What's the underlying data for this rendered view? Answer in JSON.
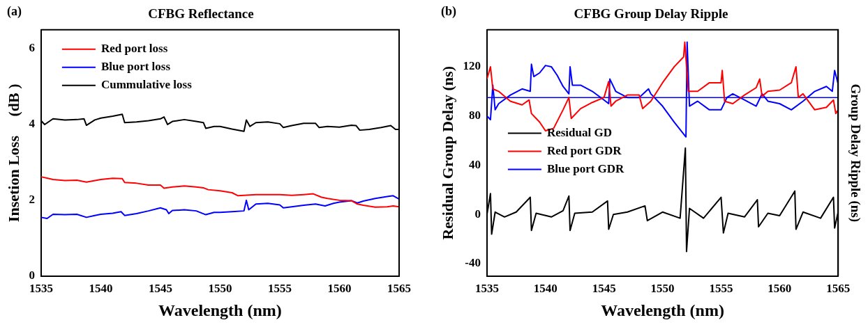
{
  "chart_data": [
    {
      "type": "line",
      "title": "CFBG Reflectance",
      "xlabel": "Wavelength (nm)",
      "ylabel": "Insetion Loss     (dB )",
      "annotations": [
        "(a)"
      ],
      "legend": "top left",
      "grid": false,
      "marker": "none",
      "line_style": "solid",
      "xlim": [
        1535,
        1565
      ],
      "xticks": [
        1535,
        1540,
        1545,
        1550,
        1555,
        1560,
        1565
      ],
      "ylim": [
        0,
        6.5
      ],
      "yticks": [
        0,
        2,
        4,
        6
      ],
      "series": [
        {
          "name": "Red port loss",
          "color": "#ff0000",
          "x": [
            1535,
            1536,
            1537,
            1538,
            1538.8,
            1540,
            1541,
            1541.8,
            1542,
            1543,
            1544,
            1545,
            1545.3,
            1546,
            1547,
            1548,
            1548.6,
            1549,
            1550,
            1551,
            1551.5,
            1552,
            1553,
            1554,
            1555,
            1556,
            1557,
            1557.8,
            1558.5,
            1559,
            1560,
            1561,
            1561.5,
            1562,
            1563,
            1564,
            1564.5,
            1565
          ],
          "values": [
            2.62,
            2.55,
            2.52,
            2.53,
            2.48,
            2.55,
            2.58,
            2.57,
            2.47,
            2.45,
            2.4,
            2.4,
            2.32,
            2.35,
            2.38,
            2.35,
            2.33,
            2.28,
            2.25,
            2.2,
            2.12,
            2.13,
            2.15,
            2.15,
            2.15,
            2.13,
            2.15,
            2.17,
            2.08,
            2.05,
            2.0,
            1.99,
            1.9,
            1.87,
            1.82,
            1.83,
            1.85,
            1.83
          ]
        },
        {
          "name": "Blue port loss",
          "color": "#0000ff",
          "x": [
            1535,
            1535.5,
            1536,
            1537,
            1538,
            1538.8,
            1539.5,
            1540,
            1541,
            1541.7,
            1542,
            1543,
            1544,
            1545,
            1545.5,
            1545.7,
            1546,
            1547,
            1548,
            1548.8,
            1549.5,
            1550,
            1551,
            1552,
            1552.2,
            1552.4,
            1553,
            1554,
            1555,
            1555.3,
            1556,
            1557,
            1558,
            1558.8,
            1559.5,
            1560,
            1561,
            1561.5,
            1562,
            1563,
            1564,
            1564.5,
            1565
          ],
          "values": [
            1.55,
            1.52,
            1.63,
            1.62,
            1.63,
            1.55,
            1.6,
            1.63,
            1.66,
            1.7,
            1.6,
            1.65,
            1.72,
            1.8,
            1.75,
            1.65,
            1.73,
            1.75,
            1.72,
            1.62,
            1.68,
            1.68,
            1.7,
            1.72,
            2.0,
            1.75,
            1.9,
            1.92,
            1.88,
            1.8,
            1.83,
            1.87,
            1.9,
            1.85,
            1.92,
            1.95,
            1.99,
            1.93,
            1.98,
            2.05,
            2.1,
            2.12,
            2.03
          ]
        },
        {
          "name": "Cummulative loss",
          "color": "#000000",
          "x": [
            1535,
            1535.3,
            1536,
            1537,
            1538,
            1538.6,
            1538.8,
            1539.5,
            1540,
            1541,
            1541.8,
            1542,
            1543,
            1544,
            1545,
            1545.3,
            1545.6,
            1546,
            1547,
            1548,
            1548.6,
            1548.8,
            1549.5,
            1550,
            1551,
            1552,
            1552.2,
            1552.5,
            1553,
            1554,
            1555,
            1555.3,
            1556,
            1557,
            1558,
            1558.3,
            1559,
            1560,
            1561,
            1561.4,
            1561.7,
            1562.5,
            1563.5,
            1564.3,
            1564.7,
            1565
          ],
          "values": [
            4.1,
            4.0,
            4.15,
            4.12,
            4.13,
            4.15,
            3.98,
            4.12,
            4.17,
            4.22,
            4.27,
            4.05,
            4.07,
            4.1,
            4.15,
            4.2,
            4.0,
            4.08,
            4.13,
            4.08,
            4.05,
            3.9,
            3.95,
            3.95,
            3.88,
            3.82,
            4.12,
            3.95,
            4.05,
            4.07,
            4.02,
            3.92,
            3.97,
            4.03,
            4.03,
            3.92,
            3.95,
            3.93,
            3.98,
            3.97,
            3.85,
            3.87,
            3.92,
            3.97,
            3.87,
            3.87
          ]
        }
      ]
    },
    {
      "type": "line",
      "title": "CFBG Group Delay Ripple",
      "xlabel": "Wavelength (nm)",
      "ylabel": "Residual Group Delay (ns)",
      "y2label": "Group Delay Ripple (ns)",
      "annotations": [
        "(b)"
      ],
      "legend": "left",
      "grid": false,
      "marker": "none",
      "line_style": "solid",
      "xlim": [
        1535,
        1565
      ],
      "xticks": [
        1535,
        1540,
        1545,
        1550,
        1555,
        1560,
        1565
      ],
      "ylim": [
        -50,
        150
      ],
      "yticks": [
        -40,
        0,
        40,
        80,
        120
      ],
      "ref_lines": [
        {
          "axis": "y",
          "value": 95,
          "color": "#0000ff"
        }
      ],
      "series": [
        {
          "name": "Residual GD",
          "color": "#000000",
          "x": [
            1535,
            1535.3,
            1535.4,
            1535.7,
            1536.5,
            1537.5,
            1538.7,
            1538.8,
            1539.2,
            1540.5,
            1541.5,
            1542,
            1542.1,
            1542.5,
            1544,
            1545.3,
            1545.4,
            1545.8,
            1547,
            1548.5,
            1548.7,
            1550,
            1551.5,
            1551.95,
            1552.05,
            1552.3,
            1553.5,
            1555,
            1555.2,
            1555.6,
            1557,
            1558.1,
            1558.2,
            1559,
            1560,
            1561.3,
            1561.4,
            1562,
            1563.5,
            1564.6,
            1564.7,
            1565
          ],
          "values": [
            0,
            17,
            -16,
            2,
            -2,
            2,
            14,
            -13,
            1,
            -2,
            3,
            15,
            -13,
            1,
            2,
            11,
            -12,
            0,
            2,
            7,
            -5,
            2,
            -3,
            54,
            -30,
            5,
            -3,
            14,
            -15,
            1,
            -2,
            12,
            -10,
            1,
            -1,
            19,
            -12,
            2,
            -3,
            14,
            -11,
            2
          ]
        },
        {
          "name": "Red port GDR",
          "color": "#ff0000",
          "x": [
            1535,
            1535.3,
            1535.5,
            1536,
            1537,
            1538,
            1538.6,
            1538.8,
            1539.5,
            1540,
            1540.7,
            1541.5,
            1542,
            1542.2,
            1543,
            1544,
            1545,
            1545.4,
            1545.6,
            1546,
            1547,
            1548,
            1548.3,
            1549,
            1550,
            1551,
            1551.8,
            1551.9,
            1552.2,
            1553,
            1554,
            1555,
            1555.1,
            1555.3,
            1556,
            1557,
            1558,
            1558.3,
            1558.5,
            1559,
            1560,
            1561,
            1561.4,
            1561.6,
            1562,
            1563,
            1564,
            1564.6,
            1564.8,
            1565
          ],
          "values": [
            110,
            120,
            102,
            100,
            92,
            89,
            93,
            82,
            75,
            68,
            70,
            85,
            95,
            78,
            86,
            91,
            95,
            108,
            88,
            92,
            97,
            97,
            86,
            92,
            107,
            120,
            128,
            140,
            100,
            100,
            107,
            107,
            117,
            92,
            90,
            97,
            103,
            110,
            96,
            100,
            101,
            107,
            120,
            95,
            98,
            85,
            87,
            93,
            82,
            85
          ]
        },
        {
          "name": "Blue port GDR",
          "color": "#0000ff",
          "x": [
            1535,
            1535.3,
            1535.5,
            1535.7,
            1536,
            1537,
            1538,
            1538.7,
            1538.8,
            1539,
            1539.5,
            1540,
            1540.5,
            1541,
            1541.5,
            1542,
            1542.1,
            1542.3,
            1543,
            1544,
            1545,
            1545.4,
            1545.5,
            1546,
            1547,
            1548,
            1548.8,
            1549,
            1550,
            1551,
            1552,
            1552.1,
            1552.3,
            1553,
            1554,
            1555,
            1555.5,
            1556,
            1557,
            1558,
            1558.5,
            1559,
            1560,
            1561,
            1562,
            1563,
            1564,
            1564.5,
            1564.7,
            1565
          ],
          "values": [
            80,
            77,
            105,
            85,
            90,
            97,
            102,
            100,
            122,
            112,
            115,
            121,
            120,
            113,
            104,
            98,
            120,
            105,
            105,
            100,
            93,
            90,
            110,
            100,
            95,
            95,
            102,
            98,
            88,
            75,
            63,
            140,
            88,
            92,
            85,
            85,
            95,
            98,
            93,
            88,
            98,
            92,
            90,
            85,
            92,
            100,
            104,
            100,
            117,
            106
          ]
        }
      ]
    }
  ]
}
